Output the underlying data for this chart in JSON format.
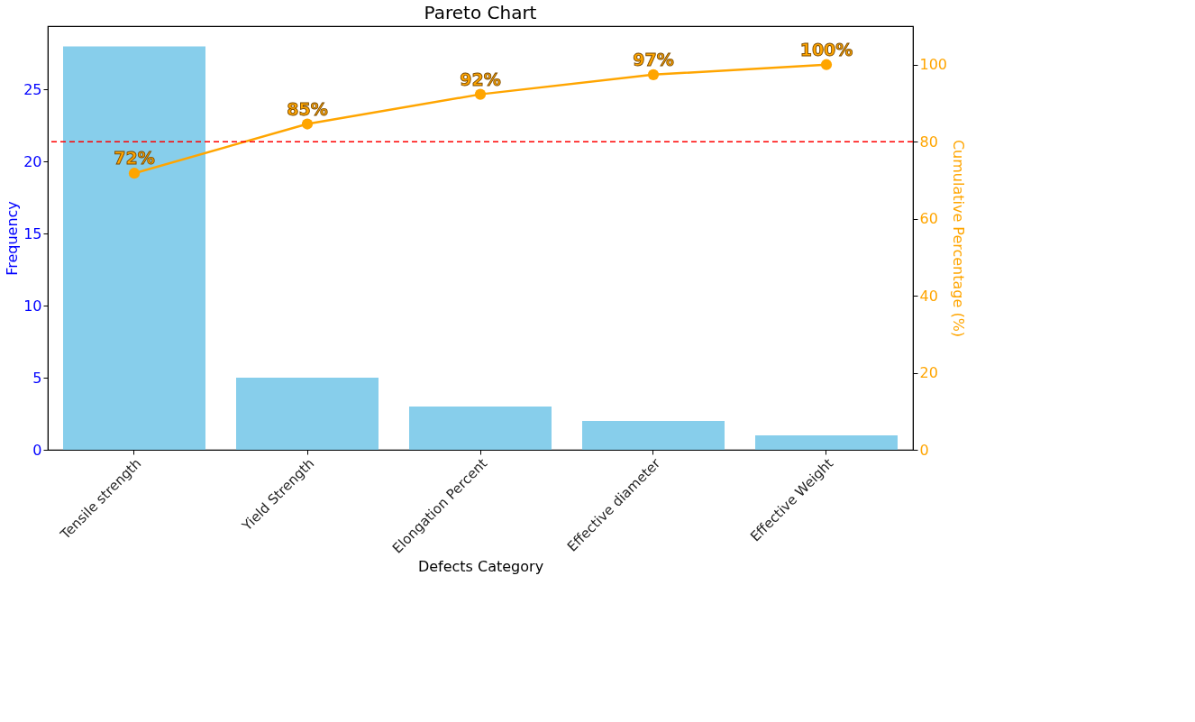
{
  "chart_data": {
    "type": "bar",
    "title": "Pareto Chart",
    "xlabel": "Defects Category",
    "ylabel": "Frequency",
    "y2label": "Cumulative Percentage (%)",
    "categories": [
      "Tensile strength",
      "Yield Strength",
      "Elongation Percent",
      "Effective diameter",
      "Effective Weight"
    ],
    "series": [
      {
        "color": "#87ceeb",
        "values": [
          28,
          5,
          3,
          2,
          1
        ]
      },
      {
        "type": "line",
        "axis": "y2",
        "color": "#ffa500",
        "marker": "circle",
        "values": [
          71.8,
          84.6,
          92.3,
          97.4,
          100
        ],
        "value_labels": [
          "72%",
          "85%",
          "92%",
          "97%",
          "100%"
        ]
      }
    ],
    "ylim": [
      0,
      29.4
    ],
    "yticks": [
      0,
      5,
      10,
      15,
      20,
      25
    ],
    "y2lim": [
      0,
      110
    ],
    "y2ticks": [
      0,
      20,
      40,
      60,
      80,
      100
    ],
    "ref_lines": [
      {
        "axis": "y2",
        "value": 80,
        "color": "#ff0000",
        "line_style": "dashed"
      }
    ],
    "grid": false
  }
}
